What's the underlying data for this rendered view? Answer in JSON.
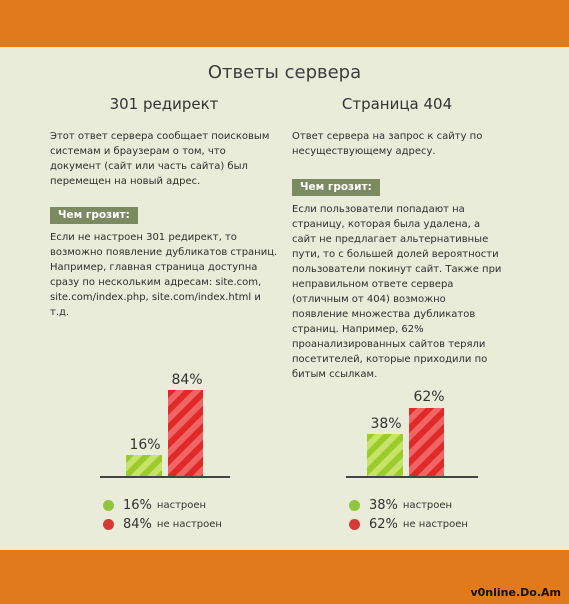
{
  "title": "Ответы сервера",
  "left": {
    "heading": "301 редирект",
    "intro": "Этот ответ сервера сообщает поисковым системам и браузерам о том, что документ (сайт или часть сайта) был перемещен на новый адрес.",
    "threat_label": "Чем грозит:",
    "threat_text": "Если не настроен 301 редирект, то возможно появление дубликатов страниц. Например, главная страница доступна сразу по нескольким адресам: site.com, site.com/index.php, site.com/index.html и т.д.",
    "chart_pct_green": "16%",
    "chart_pct_red": "84%",
    "legend_green_value": "16%",
    "legend_green_label": "настроен",
    "legend_red_value": "84%",
    "legend_red_label": "не настроен"
  },
  "right": {
    "heading": "Страница 404",
    "intro": "Ответ сервера на запрос к сайту по несуществующему адресу.",
    "threat_label": "Чем грозит:",
    "threat_text": "Если пользователи попадают на страницу, которая была удалена, а сайт не предлагает альтернативные пути, то с большей долей вероятности пользователи покинут сайт. Также при неправильном ответе сервера (отличным от 404) возможно появление множества дубликатов страниц. Например, 62% проанализированных сайтов теряли посетителей, которые приходили по битым ссылкам.",
    "chart_pct_green": "38%",
    "chart_pct_red": "62%",
    "legend_green_value": "38%",
    "legend_green_label": "настроен",
    "legend_red_value": "62%",
    "legend_red_label": "не настроен"
  },
  "watermark": "v0nline.Do.Am",
  "colors": {
    "orange": "#e07a1a",
    "background": "#e8ecd9",
    "tag": "#7b8a61",
    "green": "#8ec63f",
    "red": "#d93838"
  },
  "chart_data": [
    {
      "type": "bar",
      "categories": [
        "настроен",
        "не настроен"
      ],
      "values": [
        16,
        84
      ],
      "title": "301 редирект"
    },
    {
      "type": "bar",
      "categories": [
        "настроен",
        "не настроен"
      ],
      "values": [
        38,
        62
      ],
      "title": "Страница 404"
    }
  ]
}
